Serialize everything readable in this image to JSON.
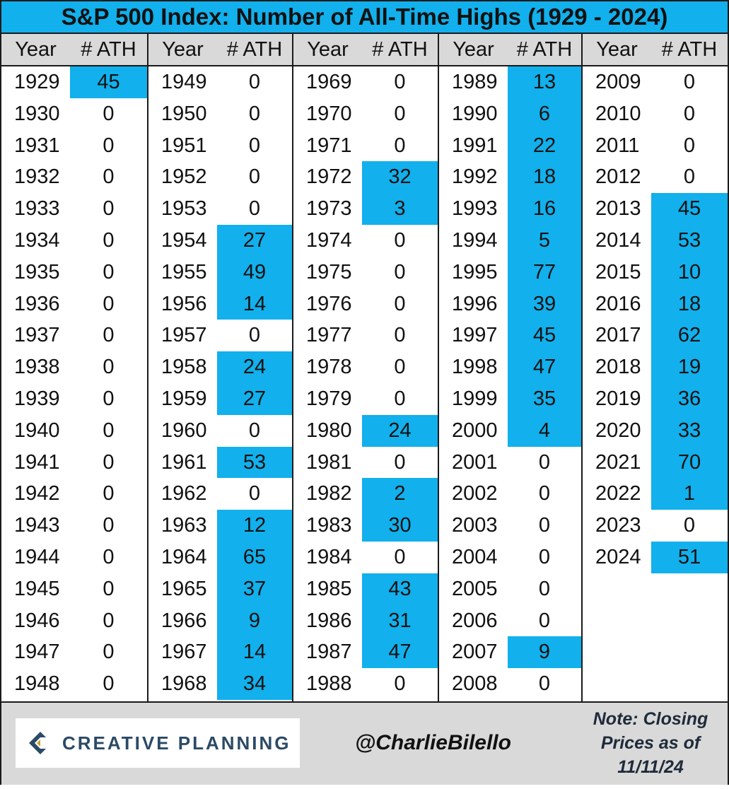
{
  "chart_data": {
    "type": "table",
    "title": "S&P 500 Index: Number of All-Time Highs (1929 - 2024)",
    "column_headers": [
      "Year",
      "# ATH"
    ],
    "highlight_color": "#12b0ec",
    "columns": [
      {
        "years": [
          "1929",
          "1930",
          "1931",
          "1932",
          "1933",
          "1934",
          "1935",
          "1936",
          "1937",
          "1938",
          "1939",
          "1940",
          "1941",
          "1942",
          "1943",
          "1944",
          "1945",
          "1946",
          "1947",
          "1948"
        ],
        "values": [
          45,
          0,
          0,
          0,
          0,
          0,
          0,
          0,
          0,
          0,
          0,
          0,
          0,
          0,
          0,
          0,
          0,
          0,
          0,
          0
        ]
      },
      {
        "years": [
          "1949",
          "1950",
          "1951",
          "1952",
          "1953",
          "1954",
          "1955",
          "1956",
          "1957",
          "1958",
          "1959",
          "1960",
          "1961",
          "1962",
          "1963",
          "1964",
          "1965",
          "1966",
          "1967",
          "1968"
        ],
        "values": [
          0,
          0,
          0,
          0,
          0,
          27,
          49,
          14,
          0,
          24,
          27,
          0,
          53,
          0,
          12,
          65,
          37,
          9,
          14,
          34
        ]
      },
      {
        "years": [
          "1969",
          "1970",
          "1971",
          "1972",
          "1973",
          "1974",
          "1975",
          "1976",
          "1977",
          "1978",
          "1979",
          "1980",
          "1981",
          "1982",
          "1983",
          "1984",
          "1985",
          "1986",
          "1987",
          "1988"
        ],
        "values": [
          0,
          0,
          0,
          32,
          3,
          0,
          0,
          0,
          0,
          0,
          0,
          24,
          0,
          2,
          30,
          0,
          43,
          31,
          47,
          0
        ]
      },
      {
        "years": [
          "1989",
          "1990",
          "1991",
          "1992",
          "1993",
          "1994",
          "1995",
          "1996",
          "1997",
          "1998",
          "1999",
          "2000",
          "2001",
          "2002",
          "2003",
          "2004",
          "2005",
          "2006",
          "2007",
          "2008"
        ],
        "values": [
          13,
          6,
          22,
          18,
          16,
          5,
          77,
          39,
          45,
          47,
          35,
          4,
          0,
          0,
          0,
          0,
          0,
          0,
          9,
          0
        ]
      },
      {
        "years": [
          "2009",
          "2010",
          "2011",
          "2012",
          "2013",
          "2014",
          "2015",
          "2016",
          "2017",
          "2018",
          "2019",
          "2020",
          "2021",
          "2022",
          "2023",
          "2024"
        ],
        "values": [
          0,
          0,
          0,
          0,
          45,
          53,
          10,
          18,
          62,
          19,
          36,
          33,
          70,
          1,
          0,
          51
        ]
      }
    ]
  },
  "footer": {
    "logo_text": "CREATIVE PLANNING",
    "logo_icon": "creative-planning-logo-icon",
    "handle": "@CharlieBilello",
    "note": "Note: Closing Prices as of 11/11/24"
  }
}
